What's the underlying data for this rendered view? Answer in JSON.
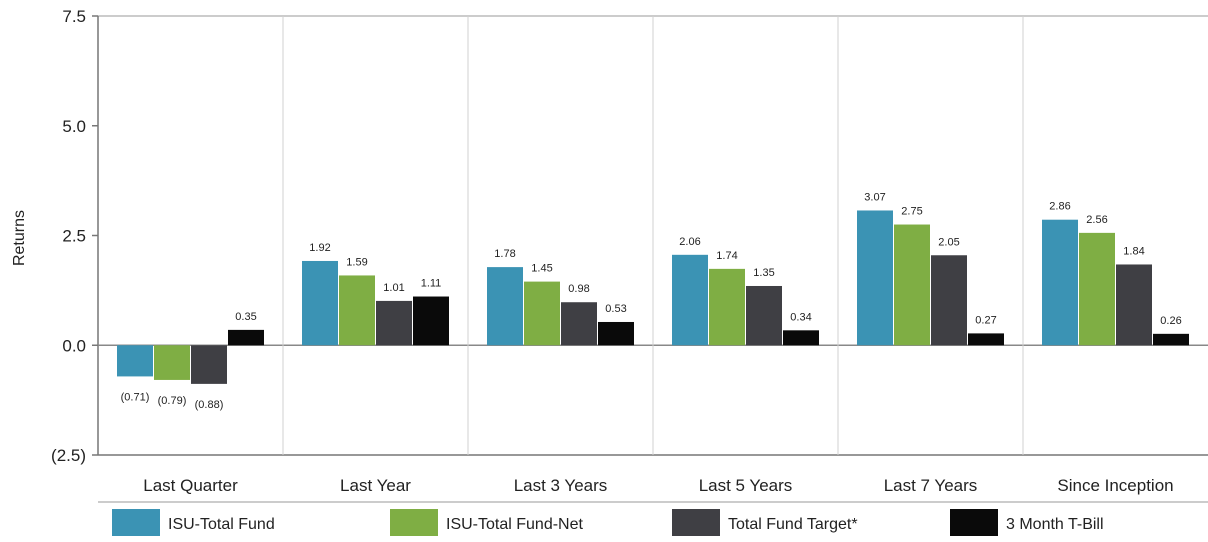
{
  "chart_data": {
    "type": "bar",
    "ylabel": "Returns",
    "ylim": [
      -2.5,
      7.5
    ],
    "yticks": [
      "7.5",
      "5.0",
      "2.5",
      "0.0",
      "(2.5)"
    ],
    "ytick_values": [
      7.5,
      5.0,
      2.5,
      0.0,
      -2.5
    ],
    "categories": [
      "Last Quarter",
      "Last Year",
      "Last 3 Years",
      "Last 5 Years",
      "Last 7 Years",
      "Since Inception"
    ],
    "series": [
      {
        "name": "ISU-Total Fund",
        "color": "#3b93b4",
        "values": [
          -0.71,
          1.92,
          1.78,
          2.06,
          3.07,
          2.86
        ],
        "labels": [
          "(0.71)",
          "1.92",
          "1.78",
          "2.06",
          "3.07",
          "2.86"
        ]
      },
      {
        "name": "ISU-Total Fund-Net",
        "color": "#7fae44",
        "values": [
          -0.79,
          1.59,
          1.45,
          1.74,
          2.75,
          2.56
        ],
        "labels": [
          "(0.79)",
          "1.59",
          "1.45",
          "1.74",
          "2.75",
          "2.56"
        ]
      },
      {
        "name": "Total Fund Target*",
        "color": "#3f3f44",
        "values": [
          -0.88,
          1.01,
          0.98,
          1.35,
          2.05,
          1.84
        ],
        "labels": [
          "(0.88)",
          "1.01",
          "0.98",
          "1.35",
          "2.05",
          "1.84"
        ]
      },
      {
        "name": "3 Month T-Bill",
        "color": "#0a0a0a",
        "values": [
          0.35,
          1.11,
          0.53,
          0.34,
          0.27,
          0.26
        ],
        "labels": [
          "0.35",
          "1.11",
          "0.53",
          "0.34",
          "0.27",
          "0.26"
        ]
      }
    ],
    "negative_label_color": "#c0392b",
    "grid": "vertical separators",
    "legend": "bottom"
  }
}
